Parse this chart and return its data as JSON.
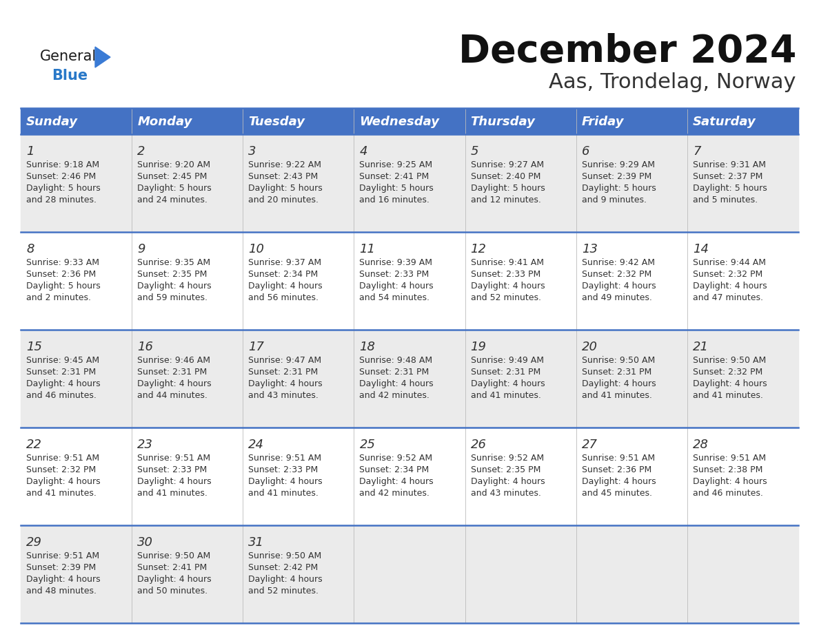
{
  "title": "December 2024",
  "subtitle": "Aas, Trondelag, Norway",
  "header_color": "#4472C4",
  "header_text_color": "#FFFFFF",
  "odd_row_bg": "#EBEBEB",
  "even_row_bg": "#FFFFFF",
  "border_color": "#4472C4",
  "text_color": "#333333",
  "logo_black": "#1a1a1a",
  "logo_blue": "#2878C8",
  "days_of_week": [
    "Sunday",
    "Monday",
    "Tuesday",
    "Wednesday",
    "Thursday",
    "Friday",
    "Saturday"
  ],
  "calendar_data": [
    [
      {
        "day": 1,
        "sunrise": "9:18 AM",
        "sunset": "2:46 PM",
        "daylight": "5 hours and 28 minutes."
      },
      {
        "day": 2,
        "sunrise": "9:20 AM",
        "sunset": "2:45 PM",
        "daylight": "5 hours and 24 minutes."
      },
      {
        "day": 3,
        "sunrise": "9:22 AM",
        "sunset": "2:43 PM",
        "daylight": "5 hours and 20 minutes."
      },
      {
        "day": 4,
        "sunrise": "9:25 AM",
        "sunset": "2:41 PM",
        "daylight": "5 hours and 16 minutes."
      },
      {
        "day": 5,
        "sunrise": "9:27 AM",
        "sunset": "2:40 PM",
        "daylight": "5 hours and 12 minutes."
      },
      {
        "day": 6,
        "sunrise": "9:29 AM",
        "sunset": "2:39 PM",
        "daylight": "5 hours and 9 minutes."
      },
      {
        "day": 7,
        "sunrise": "9:31 AM",
        "sunset": "2:37 PM",
        "daylight": "5 hours and 5 minutes."
      }
    ],
    [
      {
        "day": 8,
        "sunrise": "9:33 AM",
        "sunset": "2:36 PM",
        "daylight": "5 hours and 2 minutes."
      },
      {
        "day": 9,
        "sunrise": "9:35 AM",
        "sunset": "2:35 PM",
        "daylight": "4 hours and 59 minutes."
      },
      {
        "day": 10,
        "sunrise": "9:37 AM",
        "sunset": "2:34 PM",
        "daylight": "4 hours and 56 minutes."
      },
      {
        "day": 11,
        "sunrise": "9:39 AM",
        "sunset": "2:33 PM",
        "daylight": "4 hours and 54 minutes."
      },
      {
        "day": 12,
        "sunrise": "9:41 AM",
        "sunset": "2:33 PM",
        "daylight": "4 hours and 52 minutes."
      },
      {
        "day": 13,
        "sunrise": "9:42 AM",
        "sunset": "2:32 PM",
        "daylight": "4 hours and 49 minutes."
      },
      {
        "day": 14,
        "sunrise": "9:44 AM",
        "sunset": "2:32 PM",
        "daylight": "4 hours and 47 minutes."
      }
    ],
    [
      {
        "day": 15,
        "sunrise": "9:45 AM",
        "sunset": "2:31 PM",
        "daylight": "4 hours and 46 minutes."
      },
      {
        "day": 16,
        "sunrise": "9:46 AM",
        "sunset": "2:31 PM",
        "daylight": "4 hours and 44 minutes."
      },
      {
        "day": 17,
        "sunrise": "9:47 AM",
        "sunset": "2:31 PM",
        "daylight": "4 hours and 43 minutes."
      },
      {
        "day": 18,
        "sunrise": "9:48 AM",
        "sunset": "2:31 PM",
        "daylight": "4 hours and 42 minutes."
      },
      {
        "day": 19,
        "sunrise": "9:49 AM",
        "sunset": "2:31 PM",
        "daylight": "4 hours and 41 minutes."
      },
      {
        "day": 20,
        "sunrise": "9:50 AM",
        "sunset": "2:31 PM",
        "daylight": "4 hours and 41 minutes."
      },
      {
        "day": 21,
        "sunrise": "9:50 AM",
        "sunset": "2:32 PM",
        "daylight": "4 hours and 41 minutes."
      }
    ],
    [
      {
        "day": 22,
        "sunrise": "9:51 AM",
        "sunset": "2:32 PM",
        "daylight": "4 hours and 41 minutes."
      },
      {
        "day": 23,
        "sunrise": "9:51 AM",
        "sunset": "2:33 PM",
        "daylight": "4 hours and 41 minutes."
      },
      {
        "day": 24,
        "sunrise": "9:51 AM",
        "sunset": "2:33 PM",
        "daylight": "4 hours and 41 minutes."
      },
      {
        "day": 25,
        "sunrise": "9:52 AM",
        "sunset": "2:34 PM",
        "daylight": "4 hours and 42 minutes."
      },
      {
        "day": 26,
        "sunrise": "9:52 AM",
        "sunset": "2:35 PM",
        "daylight": "4 hours and 43 minutes."
      },
      {
        "day": 27,
        "sunrise": "9:51 AM",
        "sunset": "2:36 PM",
        "daylight": "4 hours and 45 minutes."
      },
      {
        "day": 28,
        "sunrise": "9:51 AM",
        "sunset": "2:38 PM",
        "daylight": "4 hours and 46 minutes."
      }
    ],
    [
      {
        "day": 29,
        "sunrise": "9:51 AM",
        "sunset": "2:39 PM",
        "daylight": "4 hours and 48 minutes."
      },
      {
        "day": 30,
        "sunrise": "9:50 AM",
        "sunset": "2:41 PM",
        "daylight": "4 hours and 50 minutes."
      },
      {
        "day": 31,
        "sunrise": "9:50 AM",
        "sunset": "2:42 PM",
        "daylight": "4 hours and 52 minutes."
      },
      null,
      null,
      null,
      null
    ]
  ]
}
